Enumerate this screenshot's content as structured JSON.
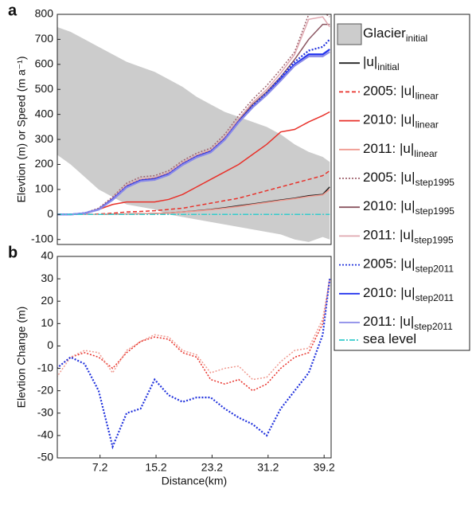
{
  "chart_data": [
    {
      "type": "line",
      "panel": "a",
      "ylabel": "Elevtion (m) or Speed (m a⁻¹)",
      "xlim": [
        1.1,
        40.2
      ],
      "ylim": [
        -120,
        800
      ],
      "yticks": [
        -100,
        0,
        100,
        200,
        300,
        400,
        500,
        600,
        700,
        800
      ],
      "legend": "outside right",
      "x": [
        1,
        3,
        5,
        7,
        9,
        11,
        13,
        15,
        17,
        19,
        21,
        23,
        25,
        27,
        29,
        31,
        33,
        35,
        37,
        39,
        40
      ],
      "series": [
        {
          "name": "Glacier",
          "name_sub": "initial",
          "color": "#cccccc",
          "style": "area",
          "values": [
            750,
            730,
            700,
            670,
            640,
            610,
            590,
            570,
            540,
            510,
            470,
            440,
            410,
            390,
            370,
            350,
            320,
            280,
            250,
            230,
            210
          ],
          "lower": [
            240,
            200,
            150,
            100,
            70,
            40,
            30,
            20,
            0,
            -10,
            -20,
            -30,
            -40,
            -50,
            -60,
            -70,
            -80,
            -100,
            -110,
            -90,
            -100
          ]
        },
        {
          "name": "|u|",
          "name_sub": "initial",
          "color": "#222222",
          "style": "solid",
          "values": [
            0,
            0,
            0,
            0,
            1,
            2,
            3,
            4,
            6,
            10,
            15,
            20,
            27,
            35,
            42,
            50,
            58,
            65,
            75,
            80,
            110
          ]
        },
        {
          "name": "2005: |u|",
          "name_sub": "linear",
          "color": "#e8312a",
          "style": "dashed",
          "values": [
            0,
            0,
            0,
            2,
            5,
            10,
            12,
            15,
            20,
            25,
            35,
            45,
            55,
            65,
            80,
            95,
            110,
            125,
            140,
            155,
            175
          ]
        },
        {
          "name": "2010: |u|",
          "name_sub": "linear",
          "color": "#e8312a",
          "style": "solid",
          "values": [
            0,
            0,
            2,
            20,
            40,
            50,
            50,
            50,
            60,
            80,
            110,
            140,
            170,
            200,
            240,
            280,
            330,
            340,
            370,
            395,
            410
          ]
        },
        {
          "name": "2011: |u|",
          "name_sub": "linear",
          "color": "#f09a90",
          "style": "solid",
          "values": [
            0,
            0,
            0,
            0,
            1,
            2,
            3,
            4,
            6,
            10,
            14,
            19,
            25,
            32,
            40,
            48,
            56,
            63,
            72,
            78,
            100
          ]
        },
        {
          "name": "2005: |u|",
          "name_sub": "step1995",
          "color": "#a0646e",
          "style": "dotted",
          "values": [
            0,
            0,
            6,
            25,
            70,
            125,
            150,
            155,
            175,
            215,
            245,
            265,
            320,
            395,
            460,
            515,
            580,
            650,
            800,
            810,
            790
          ]
        },
        {
          "name": "2010: |u|",
          "name_sub": "step1995",
          "color": "#8a5560",
          "style": "solid",
          "values": [
            0,
            0,
            4,
            22,
            65,
            115,
            140,
            145,
            165,
            205,
            235,
            255,
            305,
            375,
            440,
            490,
            550,
            620,
            700,
            760,
            760
          ]
        },
        {
          "name": "2011: |u|",
          "name_sub": "step1995",
          "color": "#e0a8b0",
          "style": "solid",
          "values": [
            0,
            0,
            5,
            22,
            65,
            118,
            142,
            148,
            168,
            208,
            238,
            258,
            310,
            382,
            448,
            500,
            565,
            640,
            780,
            790,
            750
          ]
        },
        {
          "name": "2005: |u|",
          "name_sub": "step2011",
          "color": "#2233dd",
          "style": "dotted",
          "values": [
            0,
            0,
            5,
            20,
            62,
            112,
            137,
            142,
            162,
            202,
            232,
            252,
            302,
            372,
            435,
            485,
            548,
            610,
            655,
            670,
            700
          ]
        },
        {
          "name": "2010: |u|",
          "name_sub": "step2011",
          "color": "#2233ee",
          "style": "solid",
          "values": [
            0,
            0,
            5,
            20,
            60,
            110,
            135,
            140,
            160,
            200,
            230,
            250,
            300,
            370,
            430,
            480,
            540,
            600,
            640,
            640,
            660
          ]
        },
        {
          "name": "2011: |u|",
          "name_sub": "step2011",
          "color": "#8a8ae8",
          "style": "solid",
          "values": [
            0,
            0,
            5,
            19,
            58,
            108,
            133,
            138,
            158,
            198,
            228,
            248,
            298,
            368,
            428,
            478,
            535,
            595,
            632,
            632,
            650
          ]
        },
        {
          "name": "sea level",
          "color": "#33cccc",
          "style": "dashdot",
          "values": [
            0,
            0,
            0,
            0,
            0,
            0,
            0,
            0,
            0,
            0,
            0,
            0,
            0,
            0,
            0,
            0,
            0,
            0,
            0,
            0,
            0
          ]
        }
      ]
    },
    {
      "type": "line",
      "panel": "b",
      "ylabel": "Elevtion Change (m)",
      "xlabel": "Distance(km)",
      "xlim": [
        1.1,
        40.2
      ],
      "ylim": [
        -50,
        40
      ],
      "xticks": [
        7.2,
        15.2,
        23.2,
        31.2,
        39.2
      ],
      "yticks": [
        -50,
        -40,
        -30,
        -20,
        -10,
        0,
        10,
        20,
        30,
        40
      ],
      "x": [
        1,
        3,
        5,
        7,
        9,
        11,
        13,
        15,
        17,
        19,
        21,
        23,
        25,
        27,
        29,
        31,
        33,
        35,
        37,
        39,
        40
      ],
      "series": [
        {
          "color": "#e8312a",
          "style": "dotted",
          "values": [
            -10,
            -5,
            -3,
            -5,
            -10,
            -3,
            2,
            4,
            3,
            -3,
            -5,
            -15,
            -17,
            -15,
            -20,
            -17,
            -10,
            -5,
            -3,
            10,
            30
          ]
        },
        {
          "color": "#f09a90",
          "style": "dotted",
          "values": [
            -14,
            -5,
            -2,
            -3,
            -12,
            -2,
            2,
            5,
            4,
            -2,
            -4,
            -12,
            -10,
            -9,
            -15,
            -14,
            -7,
            -2,
            -1,
            12,
            30
          ]
        },
        {
          "color": "#2233dd",
          "style": "dotted",
          "values": [
            -10,
            -5,
            -8,
            -20,
            -45,
            -30,
            -28,
            -15,
            -22,
            -25,
            -23,
            -23,
            -28,
            -32,
            -35,
            -40,
            -28,
            -20,
            -12,
            5,
            30
          ]
        }
      ]
    }
  ]
}
